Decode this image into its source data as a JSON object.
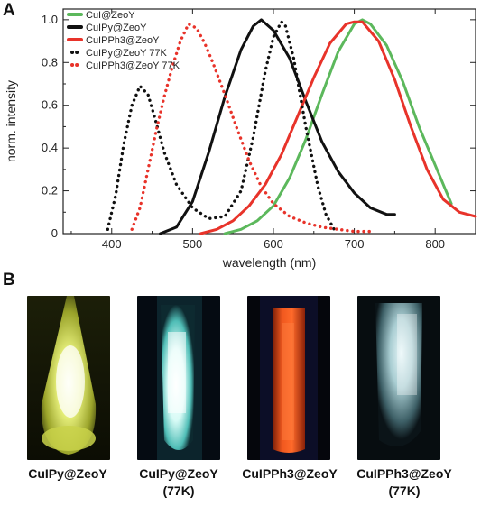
{
  "panels": {
    "a_label": "A",
    "b_label": "B"
  },
  "chart_data": {
    "type": "line",
    "xlabel": "wavelength (nm)",
    "ylabel": "norm. intensity",
    "xlim": [
      340,
      850
    ],
    "ylim": [
      0,
      1.05
    ],
    "x_ticks": [
      400,
      500,
      600,
      700,
      800
    ],
    "y_ticks": [
      0,
      0.2,
      0.4,
      0.6,
      0.8,
      1.0
    ],
    "y_tick_labels": [
      "0",
      "0.2",
      "0.4",
      "0.6",
      "0.8",
      "1.0"
    ],
    "legend_position": "top-left",
    "series": [
      {
        "name": "CuI@ZeoY",
        "color": "#5cb85c",
        "style": "solid",
        "x": [
          540,
          560,
          580,
          600,
          620,
          640,
          660,
          680,
          700,
          710,
          720,
          740,
          760,
          780,
          800,
          820
        ],
        "y": [
          0.0,
          0.02,
          0.06,
          0.13,
          0.26,
          0.44,
          0.65,
          0.85,
          0.98,
          1.0,
          0.98,
          0.88,
          0.71,
          0.5,
          0.32,
          0.14
        ]
      },
      {
        "name": "CuIPy@ZeoY",
        "color": "#111111",
        "style": "solid",
        "x": [
          460,
          480,
          500,
          520,
          540,
          560,
          575,
          585,
          600,
          620,
          640,
          660,
          680,
          700,
          720,
          740,
          750
        ],
        "y": [
          0.0,
          0.03,
          0.15,
          0.38,
          0.64,
          0.86,
          0.97,
          1.0,
          0.95,
          0.82,
          0.62,
          0.43,
          0.29,
          0.19,
          0.12,
          0.09,
          0.09
        ]
      },
      {
        "name": "CuIPPh3@ZeoY",
        "color": "#e8332a",
        "style": "solid",
        "x": [
          510,
          530,
          550,
          570,
          590,
          610,
          630,
          650,
          670,
          690,
          700,
          710,
          730,
          750,
          770,
          790,
          810,
          830,
          850
        ],
        "y": [
          0.0,
          0.02,
          0.06,
          0.13,
          0.23,
          0.37,
          0.55,
          0.73,
          0.89,
          0.98,
          0.99,
          0.99,
          0.9,
          0.72,
          0.5,
          0.3,
          0.16,
          0.1,
          0.08
        ]
      },
      {
        "name": "CuIPy@ZeoY 77K",
        "color": "#111111",
        "style": "dotted",
        "x": [
          395,
          405,
          415,
          425,
          435,
          445,
          455,
          465,
          480,
          500,
          520,
          540,
          560,
          575,
          590,
          600,
          610,
          615,
          625,
          640,
          655,
          665,
          675
        ],
        "y": [
          0.02,
          0.18,
          0.42,
          0.6,
          0.69,
          0.65,
          0.52,
          0.38,
          0.23,
          0.12,
          0.07,
          0.08,
          0.2,
          0.45,
          0.76,
          0.92,
          0.99,
          0.97,
          0.82,
          0.5,
          0.22,
          0.09,
          0.02
        ]
      },
      {
        "name": "CuIPPh3@ZeoY 77K",
        "color": "#e8332a",
        "style": "dotted",
        "x": [
          425,
          435,
          445,
          455,
          465,
          475,
          485,
          495,
          505,
          515,
          525,
          540,
          555,
          570,
          585,
          600,
          620,
          640,
          660,
          680,
          700,
          720
        ],
        "y": [
          0.02,
          0.12,
          0.3,
          0.48,
          0.64,
          0.78,
          0.9,
          0.98,
          0.96,
          0.89,
          0.8,
          0.65,
          0.49,
          0.34,
          0.22,
          0.14,
          0.08,
          0.05,
          0.03,
          0.02,
          0.01,
          0.01
        ]
      }
    ]
  },
  "photos": [
    {
      "caption_line1": "CuIPy@ZeoY",
      "caption_line2": ""
    },
    {
      "caption_line1": "CuIPy@ZeoY",
      "caption_line2": "(77K)"
    },
    {
      "caption_line1": "CuIPPh3@ZeoY",
      "caption_line2": ""
    },
    {
      "caption_line1": "CuIPPh3@ZeoY",
      "caption_line2": "(77K)"
    }
  ]
}
